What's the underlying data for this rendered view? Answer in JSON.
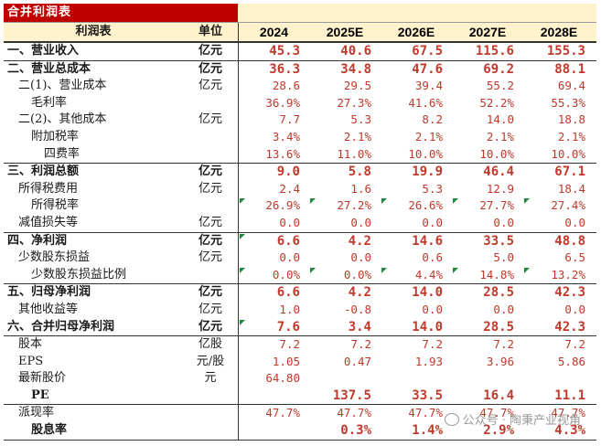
{
  "sheet": {
    "title": "合并利润表",
    "header": {
      "label": "利润表",
      "unit": "单位",
      "years": [
        "2024",
        "2025E",
        "2026E",
        "2027E",
        "2028E"
      ]
    },
    "rows": [
      {
        "label": "一、营业收入",
        "unit": "亿元",
        "values": [
          "45.3",
          "40.6",
          "67.5",
          "115.6",
          "155.3"
        ],
        "bold": true,
        "level": 0,
        "sep": true
      },
      {
        "label": "二、营业总成本",
        "unit": "亿元",
        "values": [
          "36.3",
          "34.8",
          "47.6",
          "69.2",
          "88.1"
        ],
        "bold": true,
        "level": 0,
        "sep": true
      },
      {
        "label": "二(1)、营业成本",
        "unit": "亿元",
        "values": [
          "28.6",
          "29.5",
          "39.4",
          "55.2",
          "69.4"
        ],
        "level": 1
      },
      {
        "label": "毛利率",
        "unit": "",
        "values": [
          "36.9%",
          "27.3%",
          "41.6%",
          "52.2%",
          "55.3%"
        ],
        "level": 2
      },
      {
        "label": "二(2)、其他成本",
        "unit": "亿元",
        "values": [
          "7.7",
          "5.3",
          "8.2",
          "14.0",
          "18.8"
        ],
        "level": 1
      },
      {
        "label": "附加税率",
        "unit": "",
        "values": [
          "3.4%",
          "2.1%",
          "2.1%",
          "2.1%",
          "2.1%"
        ],
        "level": 2
      },
      {
        "label": "四费率",
        "unit": "",
        "values": [
          "13.6%",
          "11.0%",
          "10.0%",
          "10.0%",
          "10.0%"
        ],
        "level": 3
      },
      {
        "label": "三、利润总额",
        "unit": "亿元",
        "values": [
          "9.0",
          "5.8",
          "19.9",
          "46.4",
          "67.1"
        ],
        "bold": true,
        "level": 0,
        "sep": true
      },
      {
        "label": "所得税费用",
        "unit": "亿元",
        "values": [
          "2.4",
          "1.6",
          "5.3",
          "12.9",
          "18.4"
        ],
        "level": 1
      },
      {
        "label": "所得税率",
        "unit": "",
        "values": [
          "26.9%",
          "27.2%",
          "26.6%",
          "27.7%",
          "27.4%"
        ],
        "level": 2,
        "flags": [
          true,
          true,
          true,
          true,
          true
        ]
      },
      {
        "label": "减值损失等",
        "unit": "亿元",
        "values": [
          "0.0",
          "0.0",
          "0.0",
          "0.0",
          "0.0"
        ],
        "level": 1
      },
      {
        "label": "四、净利润",
        "unit": "亿元",
        "values": [
          "6.6",
          "4.2",
          "14.6",
          "33.5",
          "48.8"
        ],
        "bold": true,
        "level": 0,
        "sep": true,
        "flags": [
          true,
          false,
          false,
          false,
          false
        ]
      },
      {
        "label": "少数股东损益",
        "unit": "亿元",
        "values": [
          "0.0",
          "0.0",
          "0.6",
          "5.0",
          "6.5"
        ],
        "level": 1
      },
      {
        "label": "少数股东损益比例",
        "unit": "",
        "values": [
          "0.0%",
          "0.0%",
          "4.4%",
          "14.8%",
          "13.2%"
        ],
        "level": 2,
        "flags": [
          true,
          true,
          true,
          true,
          true
        ]
      },
      {
        "label": "五、归母净利润",
        "unit": "亿元",
        "values": [
          "6.6",
          "4.2",
          "14.0",
          "28.5",
          "42.3"
        ],
        "bold": true,
        "level": 0,
        "sep": true
      },
      {
        "label": "其他收益等",
        "unit": "亿元",
        "values": [
          "1.0",
          "-0.8",
          "0.0",
          "0.0",
          "0.0"
        ],
        "level": 1
      },
      {
        "label": "六、合并归母净利润",
        "unit": "亿元",
        "values": [
          "7.6",
          "3.4",
          "14.0",
          "28.5",
          "42.3"
        ],
        "bold": true,
        "level": 0,
        "flags": [
          true,
          false,
          false,
          false,
          false
        ]
      },
      {
        "label": "股本",
        "unit": "亿股",
        "values": [
          "7.2",
          "7.2",
          "7.2",
          "7.2",
          "7.2"
        ],
        "level": 1,
        "sep": true
      },
      {
        "label": "EPS",
        "unit": "元/股",
        "values": [
          "1.05",
          "0.47",
          "1.93",
          "3.96",
          "5.86"
        ],
        "level": 1
      },
      {
        "label": "最新股价",
        "unit": "元",
        "values": [
          "64.80",
          "",
          "",
          "",
          ""
        ],
        "level": 1
      },
      {
        "label": "PE",
        "unit": "",
        "values": [
          "",
          "137.5",
          "33.5",
          "16.4",
          "11.1"
        ],
        "bold": true,
        "level": 2
      },
      {
        "label": "派现率",
        "unit": "",
        "values": [
          "47.7%",
          "47.7%",
          "47.7%",
          "47.7%",
          "47.7%"
        ],
        "level": 1,
        "sep": true
      },
      {
        "label": "股息率",
        "unit": "",
        "values": [
          "",
          "0.3%",
          "1.4%",
          "2.9%",
          "4.3%"
        ],
        "bold": true,
        "level": 2,
        "last": true
      }
    ]
  },
  "watermark": {
    "text": "公众号 · 陶秉产业视角"
  }
}
